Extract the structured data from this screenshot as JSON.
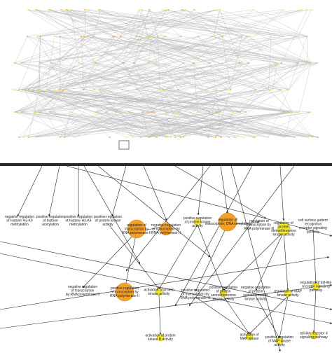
{
  "colors": {
    "edge": "#202020",
    "overview_edge": "#b8b8b8",
    "node_orange": "#f5a02a",
    "node_yellow": "#f3ea2c",
    "node_stroke": "#b07a1a"
  },
  "nodes": [
    {
      "id": "n1",
      "lines": [
        "negative regulation",
        "of histone H3-K9",
        "methylation"
      ],
      "color": "none",
      "size": 0
    },
    {
      "id": "n2",
      "lines": [
        "positive regulation",
        "of histone",
        "acetylation"
      ],
      "color": "none",
      "size": 0
    },
    {
      "id": "n3",
      "lines": [
        "positive regulation",
        "of histone H3-K4",
        "methylation"
      ],
      "color": "none",
      "size": 0
    },
    {
      "id": "n4",
      "lines": [
        "positive regulation",
        "of protein kinase",
        "activity"
      ],
      "color": "none",
      "size": 0
    },
    {
      "id": "n5",
      "lines": [
        "regulation of",
        "transcription by",
        "RNA polymerase II"
      ],
      "color": "orange",
      "size": 3
    },
    {
      "id": "n6",
      "lines": [
        "negative regulation",
        "of transcription by",
        "RNA polymerase II"
      ],
      "color": "orange",
      "size": 2
    },
    {
      "id": "n7",
      "lines": [
        "positive regulation",
        "of protein kinase",
        "activity"
      ],
      "color": "yellow",
      "size": 1
    },
    {
      "id": "n8",
      "lines": [
        "regulation of",
        "transcription, DNA-templated"
      ],
      "color": "orange",
      "size": 3
    },
    {
      "id": "n9",
      "lines": [
        "regulation of",
        "transcription by",
        "RNA polymerase III"
      ],
      "color": "none",
      "size": 0
    },
    {
      "id": "n10",
      "lines": [
        "regulation of",
        "protein",
        "serine/threonine",
        "kinase activity"
      ],
      "color": "yellow",
      "size": 2
    },
    {
      "id": "n11",
      "lines": [
        "cell surface pattern",
        "recognition",
        "receptor signaling",
        "pathway"
      ],
      "color": "none",
      "size": 0
    },
    {
      "id": "n12",
      "lines": [
        "negative regulation",
        "of transcription",
        "by RNA polymerase II"
      ],
      "color": "none",
      "size": 0
    },
    {
      "id": "n13",
      "lines": [
        "positive regulation",
        "of transcription by",
        "RNA polymerase II"
      ],
      "color": "orange",
      "size": 3
    },
    {
      "id": "n14",
      "lines": [
        "activation of protein",
        "kinase activity"
      ],
      "color": "yellow",
      "size": 1
    },
    {
      "id": "n15",
      "lines": [
        "positive regulation",
        "of transcription by",
        "RNA polymerase III"
      ],
      "color": "none",
      "size": 0
    },
    {
      "id": "n16",
      "lines": [
        "positive regulation",
        "of protein",
        "serine/threonine",
        "kinase activity"
      ],
      "color": "yellow",
      "size": 1
    },
    {
      "id": "n17",
      "lines": [
        "negative regulation",
        "of protein",
        "serine/threonine",
        "kinase activity"
      ],
      "color": "none",
      "size": 0
    },
    {
      "id": "n18",
      "lines": [
        "regulation of MAP",
        "kinase activity"
      ],
      "color": "yellow",
      "size": 1
    },
    {
      "id": "n19",
      "lines": [
        "regulation of toll-like",
        "receptor signaling",
        "pathway"
      ],
      "color": "yellow",
      "size": 1
    },
    {
      "id": "n20",
      "lines": [
        "activation of protein",
        "kinase B activity"
      ],
      "color": "yellow",
      "size": 1
    },
    {
      "id": "n21",
      "lines": [
        "activation of",
        "MAP kinase"
      ],
      "color": "yellow",
      "size": 1
    },
    {
      "id": "n22",
      "lines": [
        "positive regulation",
        "of MAP kinase",
        "activity"
      ],
      "color": "yellow",
      "size": 1
    },
    {
      "id": "n23",
      "lines": [
        "toll-like receptor 4",
        "signaling pathway"
      ],
      "color": "yellow",
      "size": 1
    }
  ],
  "edges": [
    [
      "n5",
      "n12"
    ],
    [
      "n5",
      "n13"
    ],
    [
      "n7",
      "n16"
    ],
    [
      "n7",
      "n14"
    ],
    [
      "n8",
      "n15"
    ],
    [
      "n10",
      "n16"
    ],
    [
      "n10",
      "n17"
    ],
    [
      "n10",
      "n18"
    ],
    [
      "n4",
      "n14"
    ],
    [
      "n16",
      "n21"
    ],
    [
      "n18",
      "n21"
    ],
    [
      "n18",
      "n22"
    ],
    [
      "n14",
      "n20"
    ],
    [
      "n19",
      "n23"
    ],
    [
      "n11",
      "n19"
    ],
    [
      "n8",
      "n9"
    ],
    [
      "n5",
      "n6"
    ],
    [
      "n15",
      "n21"
    ],
    [
      "n17",
      "n22"
    ]
  ]
}
